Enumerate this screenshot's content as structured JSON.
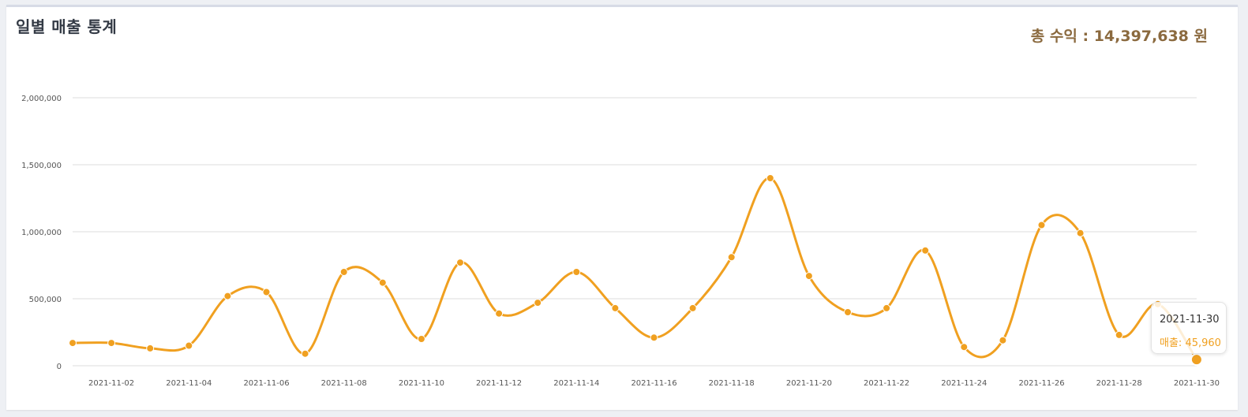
{
  "header": {
    "title": "일별 매출 통계",
    "total_label": "총 수익 :",
    "total_value": "14,397,638",
    "total_unit": "원"
  },
  "colors": {
    "line": "#f0a020",
    "total_text": "#8b6a3f",
    "grid": "#dcdcdc"
  },
  "tooltip": {
    "date": "2021-11-30",
    "series_label": "매출:",
    "value": "45,960"
  },
  "chart_data": {
    "type": "line",
    "title": "일별 매출 통계",
    "xlabel": "",
    "ylabel": "",
    "ylim": [
      0,
      2000000
    ],
    "yticks": [
      0,
      500000,
      1000000,
      1500000,
      2000000
    ],
    "ytick_labels": [
      "0",
      "500,000",
      "1,000,000",
      "1,500,000",
      "2,000,000"
    ],
    "xtick_labels": [
      "2021-11-02",
      "2021-11-04",
      "2021-11-06",
      "2021-11-08",
      "2021-11-10",
      "2021-11-12",
      "2021-11-14",
      "2021-11-16",
      "2021-11-18",
      "2021-11-20",
      "2021-11-22",
      "2021-11-24",
      "2021-11-26",
      "2021-11-28",
      "2021-11-30"
    ],
    "grid": true,
    "x": [
      "2021-11-01",
      "2021-11-02",
      "2021-11-03",
      "2021-11-04",
      "2021-11-05",
      "2021-11-06",
      "2021-11-07",
      "2021-11-08",
      "2021-11-09",
      "2021-11-10",
      "2021-11-11",
      "2021-11-12",
      "2021-11-13",
      "2021-11-14",
      "2021-11-15",
      "2021-11-16",
      "2021-11-17",
      "2021-11-18",
      "2021-11-19",
      "2021-11-20",
      "2021-11-21",
      "2021-11-22",
      "2021-11-23",
      "2021-11-24",
      "2021-11-25",
      "2021-11-26",
      "2021-11-27",
      "2021-11-28",
      "2021-11-29",
      "2021-11-30"
    ],
    "series": [
      {
        "name": "매출",
        "values": [
          170000,
          170000,
          130000,
          150000,
          520000,
          550000,
          90000,
          700000,
          620000,
          200000,
          770000,
          390000,
          470000,
          700000,
          430000,
          210000,
          430000,
          810000,
          1400000,
          670000,
          400000,
          430000,
          860000,
          140000,
          190000,
          1050000,
          990000,
          230000,
          460000,
          45960
        ]
      }
    ]
  }
}
